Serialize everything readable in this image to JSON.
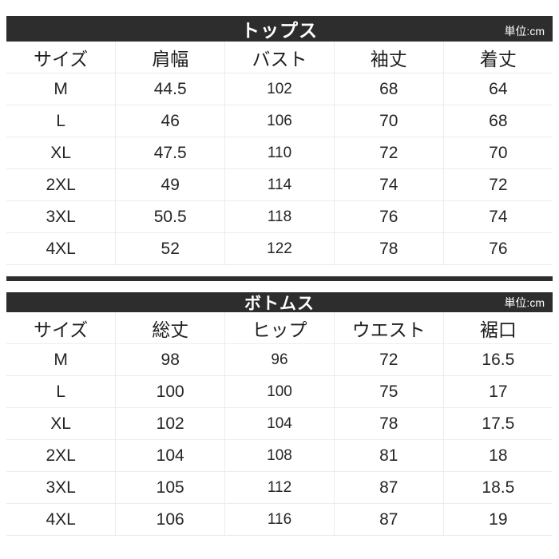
{
  "unit_label": "単位:cm",
  "colors": {
    "header_bar": "#2d2d2d",
    "grid_line": "#ececec",
    "header_text": "#ffffff",
    "body_text": "#252525"
  },
  "chart_data": [
    {
      "type": "table",
      "title": "トップス",
      "unit": "単位:cm",
      "columns": [
        "サイズ",
        "肩幅",
        "バスト",
        "袖丈",
        "着丈"
      ],
      "rows": [
        [
          "M",
          "44.5",
          "102",
          "68",
          "64"
        ],
        [
          "L",
          "46",
          "106",
          "70",
          "68"
        ],
        [
          "XL",
          "47.5",
          "110",
          "72",
          "70"
        ],
        [
          "2XL",
          "49",
          "114",
          "74",
          "72"
        ],
        [
          "3XL",
          "50.5",
          "118",
          "76",
          "74"
        ],
        [
          "4XL",
          "52",
          "122",
          "78",
          "76"
        ]
      ]
    },
    {
      "type": "table",
      "title": "ボトムス",
      "unit": "単位:cm",
      "columns": [
        "サイズ",
        "総丈",
        "ヒップ",
        "ウエスト",
        "裾口"
      ],
      "rows": [
        [
          "M",
          "98",
          "96",
          "72",
          "16.5"
        ],
        [
          "L",
          "100",
          "100",
          "75",
          "17"
        ],
        [
          "XL",
          "102",
          "104",
          "78",
          "17.5"
        ],
        [
          "2XL",
          "104",
          "108",
          "81",
          "18"
        ],
        [
          "3XL",
          "105",
          "112",
          "87",
          "18.5"
        ],
        [
          "4XL",
          "106",
          "116",
          "87",
          "19"
        ]
      ]
    }
  ]
}
